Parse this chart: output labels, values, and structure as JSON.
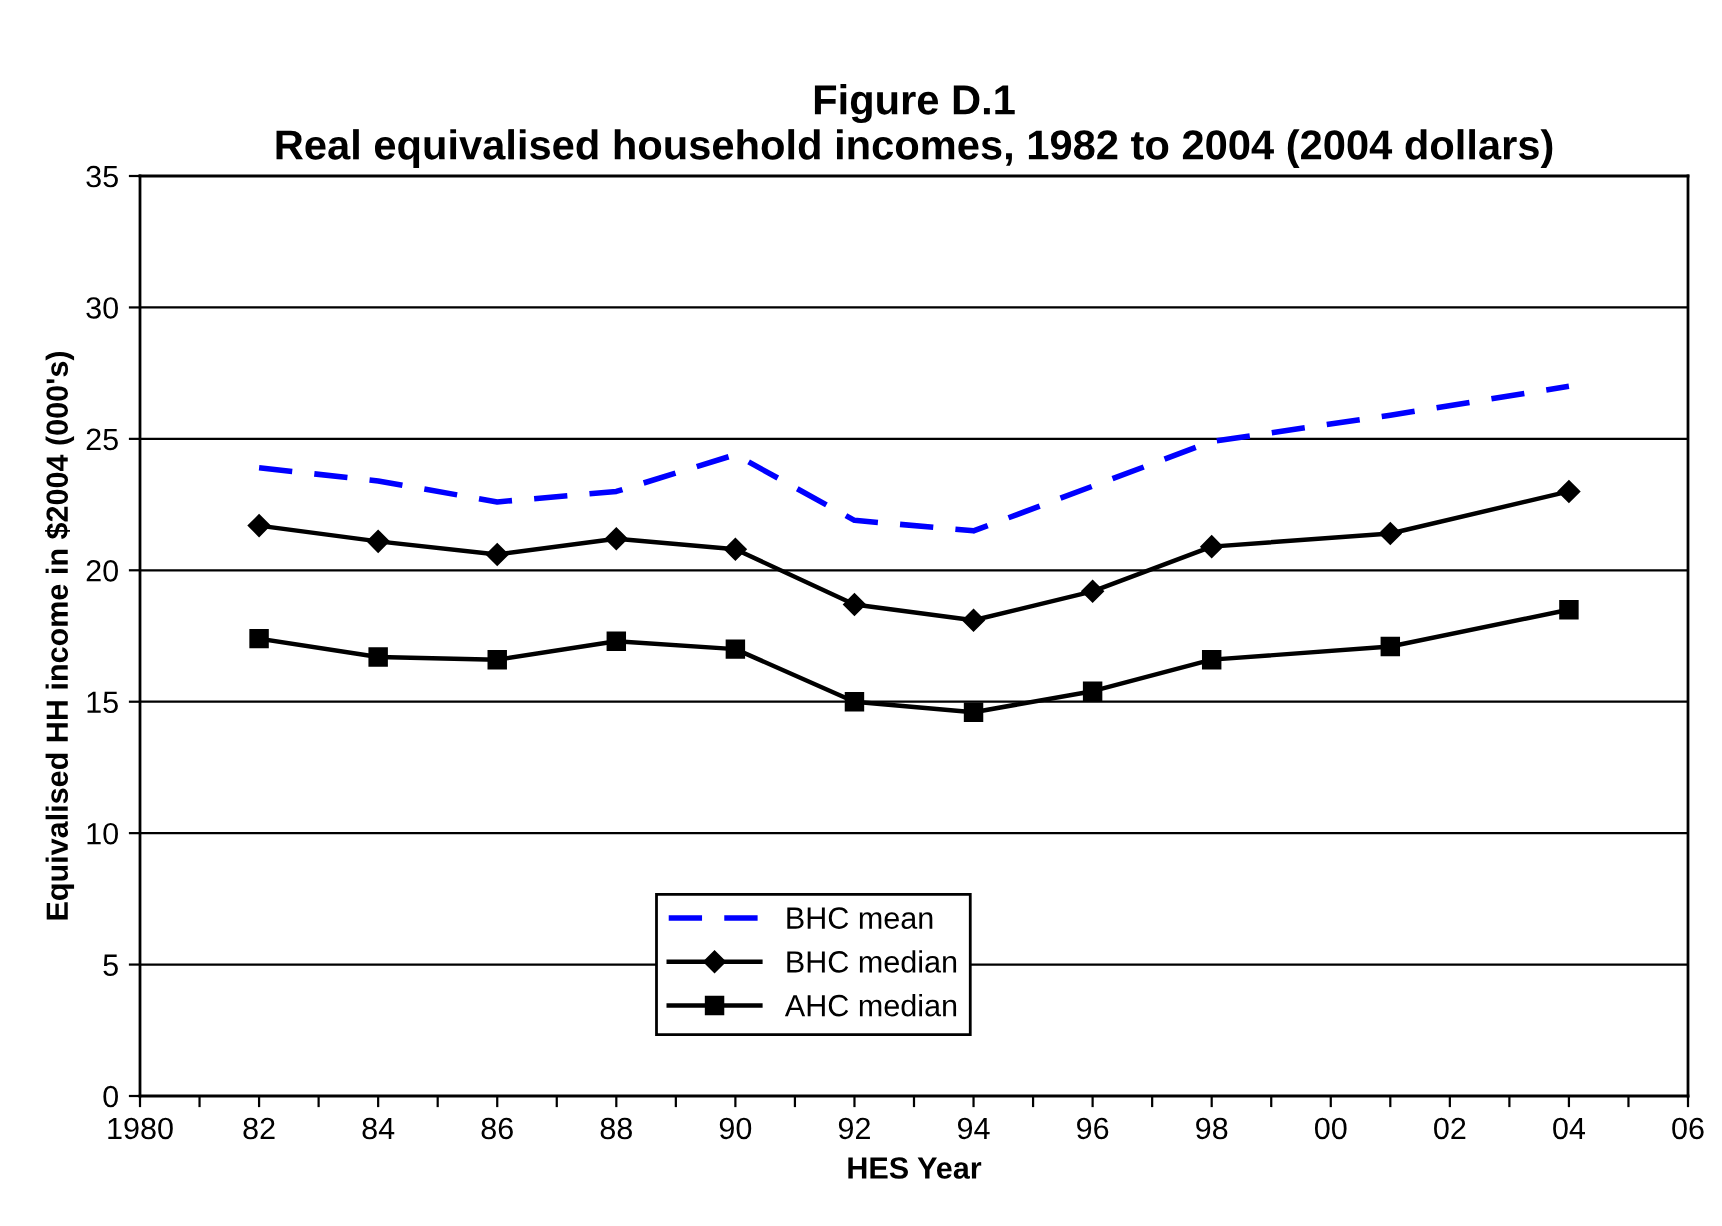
{
  "chart_data": {
    "type": "line",
    "title": "Figure D.1\nReal equivalised household incomes, 1982 to 2004 (2004 dollars)",
    "xlabel": "HES Year",
    "ylabel": "Equivalised HH income in $2004 (000's)",
    "x": [
      1982,
      1984,
      1986,
      1988,
      1990,
      1992,
      1994,
      1996,
      1998,
      2001,
      2004
    ],
    "series": [
      {
        "name": "BHC mean",
        "color": "#0000ff",
        "line_style": "dashed",
        "marker": "none",
        "values": [
          23.9,
          23.4,
          22.6,
          23.0,
          24.4,
          21.9,
          21.5,
          23.2,
          24.9,
          25.9,
          27.0
        ]
      },
      {
        "name": "BHC median",
        "color": "#000000",
        "line_style": "solid",
        "marker": "diamond",
        "values": [
          21.7,
          21.1,
          20.6,
          21.2,
          20.8,
          18.7,
          18.1,
          19.2,
          20.9,
          21.4,
          23.0
        ]
      },
      {
        "name": "AHC median",
        "color": "#000000",
        "line_style": "solid",
        "marker": "square",
        "values": [
          17.4,
          16.7,
          16.6,
          17.3,
          17.0,
          15.0,
          14.6,
          15.4,
          16.6,
          17.1,
          18.5
        ]
      }
    ],
    "xlim": [
      1980,
      2006
    ],
    "xticks": [
      1980,
      {
        "value": 1981,
        "label": null
      },
      {
        "value": 1982,
        "label": "82"
      },
      {
        "value": 1983,
        "label": null
      },
      {
        "value": 1984,
        "label": "84"
      },
      {
        "value": 1985,
        "label": null
      },
      {
        "value": 1986,
        "label": "86"
      },
      {
        "value": 1987,
        "label": null
      },
      {
        "value": 1988,
        "label": "88"
      },
      {
        "value": 1989,
        "label": null
      },
      {
        "value": 1990,
        "label": "90"
      },
      {
        "value": 1991,
        "label": null
      },
      {
        "value": 1992,
        "label": "92"
      },
      {
        "value": 1993,
        "label": null
      },
      {
        "value": 1994,
        "label": "94"
      },
      {
        "value": 1995,
        "label": null
      },
      {
        "value": 1996,
        "label": "96"
      },
      {
        "value": 1997,
        "label": null
      },
      {
        "value": 1998,
        "label": "98"
      },
      {
        "value": 1999,
        "label": null
      },
      {
        "value": 2000,
        "label": "00"
      },
      {
        "value": 2001,
        "label": null
      },
      {
        "value": 2002,
        "label": "02"
      },
      {
        "value": 2003,
        "label": null
      },
      {
        "value": 2004,
        "label": "04"
      },
      {
        "value": 2005,
        "label": null
      },
      {
        "value": 2006,
        "label": "06"
      }
    ],
    "ylim": [
      0,
      35
    ],
    "yticks": [
      0,
      5,
      10,
      15,
      20,
      25,
      30,
      35
    ],
    "grid": "y",
    "legend": "bottom"
  }
}
